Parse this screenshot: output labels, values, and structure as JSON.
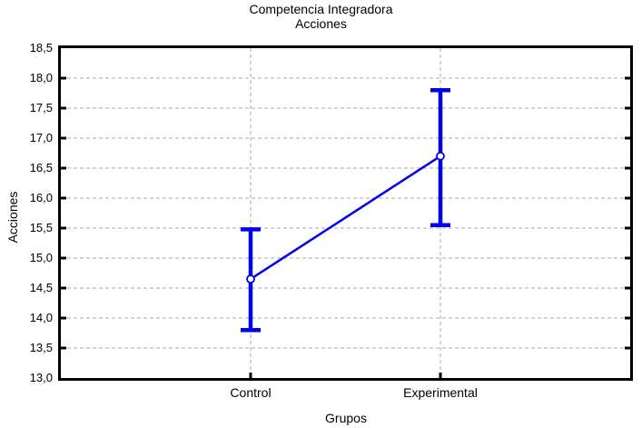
{
  "chart_data": {
    "type": "line",
    "title": "Competencia Integradora",
    "subtitle": "Acciones",
    "xlabel": "Grupos",
    "ylabel": "Acciones",
    "categories": [
      "Control",
      "Experimental"
    ],
    "series": [
      {
        "name": "Acciones",
        "means": [
          14.65,
          16.7
        ],
        "ci_low": [
          13.8,
          15.55
        ],
        "ci_high": [
          15.48,
          17.8
        ]
      }
    ],
    "ylim": [
      13.0,
      18.5
    ],
    "ytick_step": 0.5,
    "ytick_labels": [
      "18,5",
      "18,0",
      "17,5",
      "17,0",
      "16,5",
      "16,0",
      "15,5",
      "15,0",
      "14,5",
      "14,0",
      "13,5",
      "13,0"
    ],
    "decimal_separator": ",",
    "grid": "dashed",
    "legend": "none",
    "marker": "open-circle",
    "colors": {
      "series": "#0000EE",
      "grid": "#AAAAAA",
      "frame": "#000000",
      "background": "#FFFFFF",
      "text": "#000000"
    }
  }
}
